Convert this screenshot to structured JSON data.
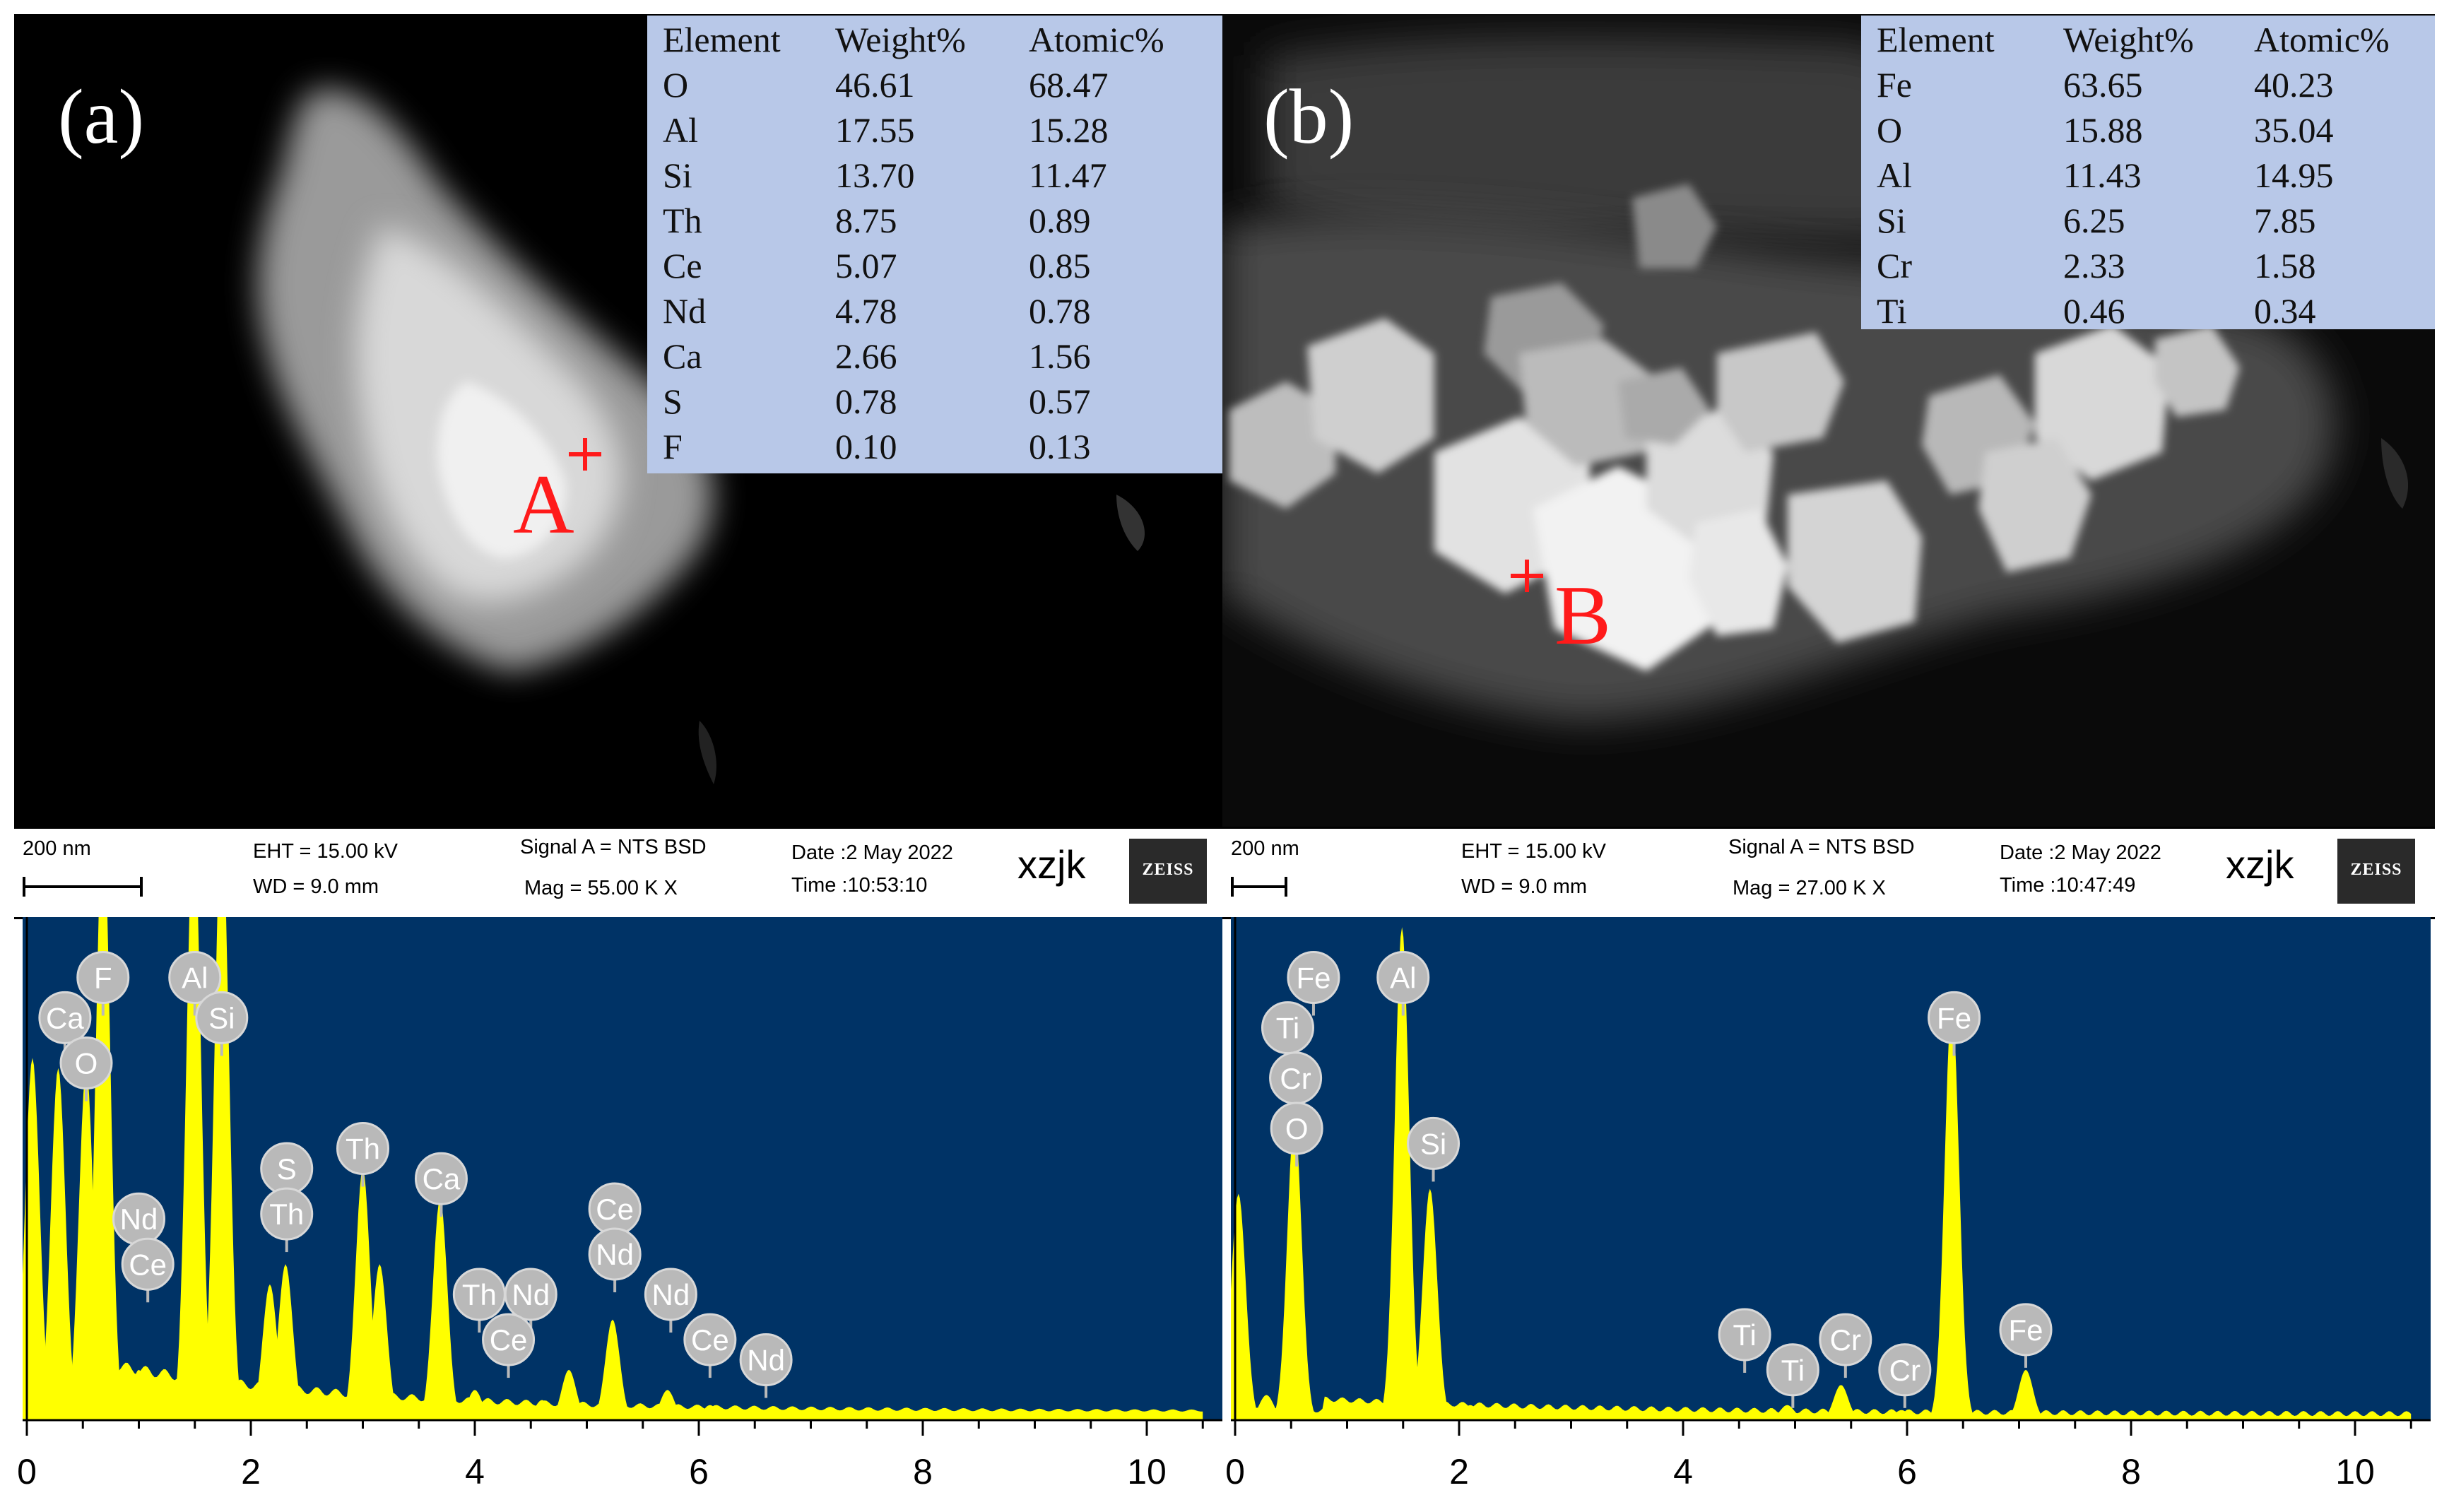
{
  "panels": [
    {
      "label": "(a)",
      "point_label": "A",
      "table": {
        "headers": [
          "Element",
          "Weight%",
          "Atomic%"
        ],
        "rows": [
          [
            "O",
            "46.61",
            "68.47"
          ],
          [
            "Al",
            "17.55",
            "15.28"
          ],
          [
            "Si",
            "13.70",
            "11.47"
          ],
          [
            "Th",
            "8.75",
            "0.89"
          ],
          [
            "Ce",
            "5.07",
            "0.85"
          ],
          [
            "Nd",
            "4.78",
            "0.78"
          ],
          [
            "Ca",
            "2.66",
            "1.56"
          ],
          [
            "S",
            "0.78",
            "0.57"
          ],
          [
            "F",
            "0.10",
            "0.13"
          ]
        ]
      },
      "infobar": {
        "scale": "200 nm",
        "eht": "EHT = 15.00 kV",
        "wd": "WD = 9.0 mm",
        "signal": "Signal A = NTS BSD",
        "mag": "Mag = 55.00 K X",
        "date": "Date :2 May 2022",
        "time": "Time :10:53:10",
        "operator": "xzjk",
        "logo": "ZEISS"
      }
    },
    {
      "label": "(b)",
      "point_label": "B",
      "table": {
        "headers": [
          "Element",
          "Weight%",
          "Atomic%"
        ],
        "rows": [
          [
            "Fe",
            "63.65",
            "40.23"
          ],
          [
            "O",
            "15.88",
            "35.04"
          ],
          [
            "Al",
            "11.43",
            "14.95"
          ],
          [
            "Si",
            "6.25",
            "7.85"
          ],
          [
            "Cr",
            "2.33",
            "1.58"
          ],
          [
            "Ti",
            "0.46",
            "0.34"
          ]
        ]
      },
      "infobar": {
        "scale": "200 nm",
        "eht": "EHT = 15.00 kV",
        "wd": "WD = 9.0 mm",
        "signal": "Signal A = NTS BSD",
        "mag": "Mag = 27.00 K X",
        "date": "Date :2 May 2022",
        "time": "Time :10:47:49",
        "operator": "xzjk",
        "logo": "ZEISS"
      }
    }
  ],
  "chart_data": [
    {
      "type": "line",
      "x_ticks": [
        "0",
        "2",
        "4",
        "6",
        "8",
        "10"
      ],
      "xlim": [
        0,
        10.5
      ],
      "colors": {
        "background": "#003366",
        "fill": "#ffff00"
      },
      "peaks": [
        {
          "x": 0.05,
          "h": 0.72
        },
        {
          "x": 0.28,
          "h": 0.7
        },
        {
          "x": 0.53,
          "h": 0.7
        },
        {
          "x": 0.68,
          "h": 1.2
        },
        {
          "x": 0.9,
          "h": 0.08
        },
        {
          "x": 1.0,
          "h": 0.1
        },
        {
          "x": 1.49,
          "h": 1.2
        },
        {
          "x": 1.74,
          "h": 1.2
        },
        {
          "x": 2.17,
          "h": 0.27
        },
        {
          "x": 2.31,
          "h": 0.31
        },
        {
          "x": 3.0,
          "h": 0.5
        },
        {
          "x": 3.15,
          "h": 0.31
        },
        {
          "x": 3.69,
          "h": 0.44
        },
        {
          "x": 4.0,
          "h": 0.06
        },
        {
          "x": 4.6,
          "h": 0.04
        },
        {
          "x": 4.84,
          "h": 0.1
        },
        {
          "x": 5.23,
          "h": 0.2
        },
        {
          "x": 5.72,
          "h": 0.06
        },
        {
          "x": 6.1,
          "h": 0.03
        }
      ],
      "element_labels": [
        {
          "label": "Ca",
          "x": 0.34,
          "y": 0.8
        },
        {
          "label": "F",
          "x": 0.68,
          "y": 0.88
        },
        {
          "label": "O",
          "x": 0.53,
          "y": 0.71
        },
        {
          "label": "Al",
          "x": 1.5,
          "y": 0.88
        },
        {
          "label": "Si",
          "x": 1.74,
          "y": 0.8
        },
        {
          "label": "Nd",
          "x": 1.0,
          "y": 0.4
        },
        {
          "label": "Ce",
          "x": 1.08,
          "y": 0.31
        },
        {
          "label": "S",
          "x": 2.32,
          "y": 0.5
        },
        {
          "label": "Th",
          "x": 2.32,
          "y": 0.41
        },
        {
          "label": "Th",
          "x": 3.0,
          "y": 0.54
        },
        {
          "label": "Ca",
          "x": 3.7,
          "y": 0.48
        },
        {
          "label": "Th",
          "x": 4.04,
          "y": 0.25
        },
        {
          "label": "Nd",
          "x": 4.5,
          "y": 0.25
        },
        {
          "label": "Ce",
          "x": 4.3,
          "y": 0.16
        },
        {
          "label": "Ce",
          "x": 5.25,
          "y": 0.42
        },
        {
          "label": "Nd",
          "x": 5.25,
          "y": 0.33
        },
        {
          "label": "Nd",
          "x": 5.75,
          "y": 0.25
        },
        {
          "label": "Ce",
          "x": 6.1,
          "y": 0.16
        },
        {
          "label": "Nd",
          "x": 6.6,
          "y": 0.12
        }
      ]
    },
    {
      "type": "line",
      "x_ticks": [
        "0",
        "2",
        "4",
        "6",
        "8",
        "10"
      ],
      "xlim": [
        0,
        10.5
      ],
      "colors": {
        "background": "#003366",
        "fill": "#ffff00"
      },
      "peaks": [
        {
          "x": 0.03,
          "h": 0.45
        },
        {
          "x": 0.28,
          "h": 0.05
        },
        {
          "x": 0.53,
          "h": 0.6
        },
        {
          "x": 1.49,
          "h": 0.98
        },
        {
          "x": 1.74,
          "h": 0.46
        },
        {
          "x": 2.1,
          "h": 0.03
        },
        {
          "x": 4.5,
          "h": 0.02
        },
        {
          "x": 4.93,
          "h": 0.03
        },
        {
          "x": 5.41,
          "h": 0.07
        },
        {
          "x": 5.95,
          "h": 0.02
        },
        {
          "x": 6.4,
          "h": 0.83
        },
        {
          "x": 7.06,
          "h": 0.1
        }
      ],
      "element_labels": [
        {
          "label": "Fe",
          "x": 0.7,
          "y": 0.88
        },
        {
          "label": "Ti",
          "x": 0.47,
          "y": 0.78
        },
        {
          "label": "Cr",
          "x": 0.54,
          "y": 0.68
        },
        {
          "label": "O",
          "x": 0.55,
          "y": 0.58
        },
        {
          "label": "Al",
          "x": 1.5,
          "y": 0.88
        },
        {
          "label": "Si",
          "x": 1.77,
          "y": 0.55
        },
        {
          "label": "Ti",
          "x": 4.55,
          "y": 0.17
        },
        {
          "label": "Ti",
          "x": 4.98,
          "y": 0.1
        },
        {
          "label": "Cr",
          "x": 5.45,
          "y": 0.16
        },
        {
          "label": "Cr",
          "x": 5.98,
          "y": 0.1
        },
        {
          "label": "Fe",
          "x": 6.42,
          "y": 0.8
        },
        {
          "label": "Fe",
          "x": 7.06,
          "y": 0.18
        }
      ]
    }
  ]
}
